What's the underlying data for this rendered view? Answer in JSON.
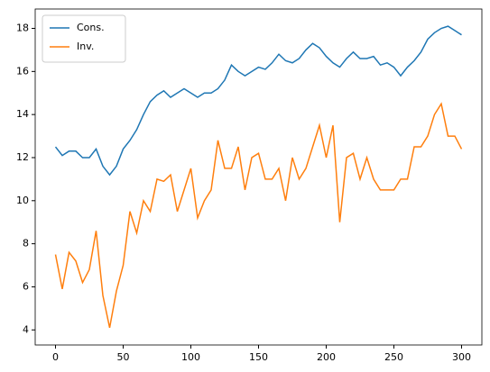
{
  "chart_data": {
    "type": "line",
    "x": [
      0,
      5,
      10,
      15,
      20,
      25,
      30,
      35,
      40,
      45,
      50,
      55,
      60,
      65,
      70,
      75,
      80,
      85,
      90,
      95,
      100,
      105,
      110,
      115,
      120,
      125,
      130,
      135,
      140,
      145,
      150,
      155,
      160,
      165,
      170,
      175,
      180,
      185,
      190,
      195,
      200,
      205,
      210,
      215,
      220,
      225,
      230,
      235,
      240,
      245,
      250,
      255,
      260,
      265,
      270,
      275,
      280,
      285,
      290,
      295,
      300
    ],
    "series": [
      {
        "name": "Cons.",
        "color": "#1f77b4",
        "values": [
          12.5,
          12.1,
          12.3,
          12.3,
          12.0,
          12.0,
          12.4,
          11.6,
          11.2,
          11.6,
          12.4,
          12.8,
          13.3,
          14.0,
          14.6,
          14.9,
          15.1,
          14.8,
          15.0,
          15.2,
          15.0,
          14.8,
          15.0,
          15.0,
          15.2,
          15.6,
          16.3,
          16.0,
          15.8,
          16.0,
          16.2,
          16.1,
          16.4,
          16.8,
          16.5,
          16.4,
          16.6,
          17.0,
          17.3,
          17.1,
          16.7,
          16.4,
          16.2,
          16.6,
          16.9,
          16.6,
          16.6,
          16.7,
          16.3,
          16.4,
          16.2,
          15.8,
          16.2,
          16.5,
          16.9,
          17.5,
          17.8,
          18.0,
          18.1,
          17.9,
          17.7
        ]
      },
      {
        "name": "Inv.",
        "color": "#ff7f0e",
        "values": [
          7.5,
          5.9,
          7.6,
          7.2,
          6.2,
          6.8,
          8.6,
          5.6,
          4.1,
          5.8,
          7.0,
          9.5,
          8.5,
          10.0,
          9.5,
          11.0,
          10.9,
          11.2,
          9.5,
          10.5,
          11.5,
          9.2,
          10.0,
          10.5,
          12.8,
          11.5,
          11.5,
          12.5,
          10.5,
          12.0,
          12.2,
          11.0,
          11.0,
          11.5,
          10.0,
          12.0,
          11.0,
          11.5,
          12.5,
          13.5,
          12.0,
          13.5,
          9.0,
          12.0,
          12.2,
          11.0,
          12.0,
          11.0,
          10.5,
          10.5,
          10.5,
          11.0,
          11.0,
          12.5,
          12.5,
          13.0,
          14.0,
          14.5,
          13.0,
          13.0,
          12.4
        ]
      }
    ],
    "xlim": [
      -15,
      315
    ],
    "ylim": [
      3.3,
      18.9
    ],
    "xticks": [
      0,
      50,
      100,
      150,
      200,
      250,
      300
    ],
    "yticks": [
      4,
      6,
      8,
      10,
      12,
      14,
      16,
      18
    ],
    "legend": "upper left"
  }
}
